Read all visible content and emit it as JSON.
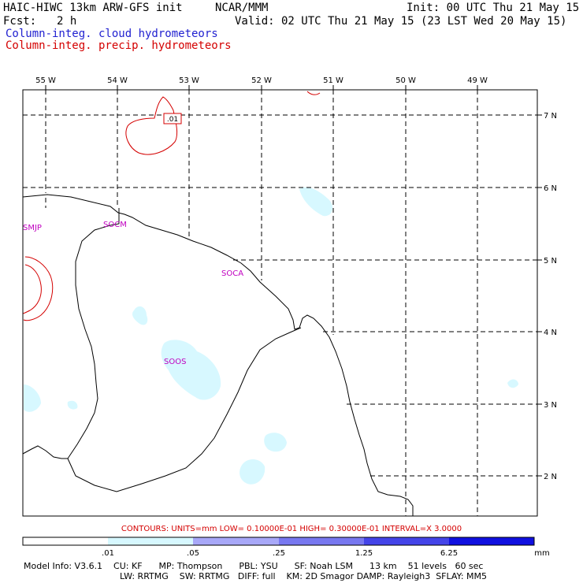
{
  "header": {
    "title": "HAIC-HIWC 13km ARW-GFS init",
    "org": "NCAR/MMM",
    "init": "Init: 00 UTC Thu 21 May 15",
    "fcst_label": "Fcst:",
    "fcst_value": "2 h",
    "valid": "Valid: 02 UTC Thu 21 May 15 (23 LST Wed 20 May 15)",
    "legend_cloud": "Column-integ. cloud hydrometeors",
    "legend_precip": "Column-integ. precip. hydrometeors"
  },
  "colors": {
    "cloud_title": "#1f1fd0",
    "precip_title": "#d40000",
    "cloud_fill": "#d7f8ff",
    "precip_contour": "#d40000",
    "grid": "#000000",
    "station": "#c000c0"
  },
  "map": {
    "lon_labels": [
      "55 W",
      "54 W",
      "53 W",
      "52 W",
      "51 W",
      "50 W",
      "49 W"
    ],
    "lat_labels": [
      "7 N",
      "6 N",
      "5 N",
      "4 N",
      "3 N",
      "2 N"
    ],
    "stations": [
      "SMJP",
      "SOCM",
      "SOCA",
      "SOOS"
    ],
    "contour_label": ".01"
  },
  "contours_line": "CONTOURS:  UNITS=mm   LOW= 0.10000E-01   HIGH= 0.30000E-01   INTERVAL=X  3.0000",
  "scale": {
    "labels": [
      ".01",
      ".05",
      ".25",
      "1.25",
      "6.25"
    ],
    "unit": "mm",
    "colors": [
      "#ffffff",
      "#d7f8ff",
      "#a8a8f8",
      "#7878f0",
      "#4444e8",
      "#1010e0"
    ]
  },
  "model_info": {
    "line1": "Model Info: V3.6.1    CU: KF      MP: Thompson      PBL: YSU      SF: Noah LSM      13 km    51 levels   60 sec",
    "line2": "LW: RRTMG    SW: RRTMG   DIFF: full    KM: 2D Smagor DAMP: Rayleigh3  SFLAY: MM5"
  }
}
